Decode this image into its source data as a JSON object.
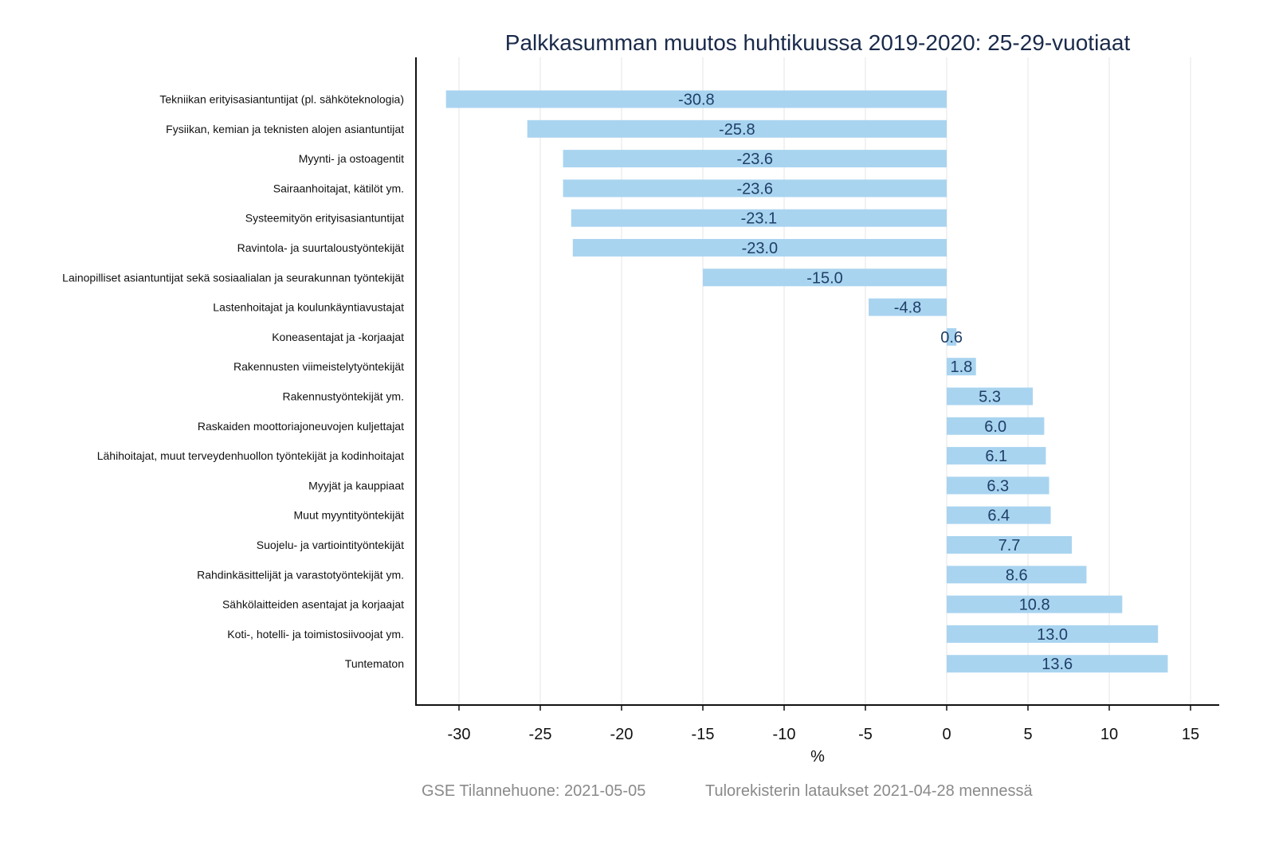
{
  "colors": {
    "bar": "#a9d4f0",
    "value_label": "#1f3f66",
    "title": "#1a2a4a",
    "footer": "#8a8a8a",
    "grid": "#e6e6e6"
  },
  "chart_data": {
    "type": "bar",
    "orientation": "horizontal",
    "title": "Palkkasumman muutos huhtikuussa 2019-2020: 25-29-vuotiaat",
    "xlabel": "%",
    "ylabel": "",
    "xlim": [
      -32.5,
      16.8
    ],
    "xticks": [
      -30,
      -25,
      -20,
      -15,
      -10,
      -5,
      0,
      5,
      10,
      15
    ],
    "grid": true,
    "categories": [
      "Tekniikan erityisasiantuntijat (pl. sähköteknologia)",
      "Fysiikan, kemian ja teknisten alojen asiantuntijat",
      "Myynti- ja ostoagentit",
      "Sairaanhoitajat, kätilöt ym.",
      "Systeemityön erityisasiantuntijat",
      "Ravintola- ja suurtaloustyöntekijät",
      "Lainopilliset asiantuntijat sekä sosiaalialan ja seurakunnan työntekijät",
      "Lastenhoitajat ja koulunkäyntiavustajat",
      "Koneasentajat ja -korjaajat",
      "Rakennusten viimeistelytyöntekijät",
      "Rakennustyöntekijät ym.",
      "Raskaiden moottoriajoneuvojen kuljettajat",
      "Lähihoitajat, muut terveydenhuollon työntekijät ja kodinhoitajat",
      "Myyjät ja kauppiaat",
      "Muut myyntityöntekijät",
      "Suojelu- ja vartiointityöntekijät",
      "Rahdinkäsittelijät ja varastotyöntekijät ym.",
      "Sähkölaitteiden asentajat ja korjaajat",
      "Koti-, hotelli- ja toimistosiivoojat ym.",
      "Tuntematon"
    ],
    "values": [
      -30.8,
      -25.8,
      -23.6,
      -23.6,
      -23.1,
      -23.0,
      -15.0,
      -4.8,
      0.6,
      1.8,
      5.3,
      6.0,
      6.1,
      6.3,
      6.4,
      7.7,
      8.6,
      10.8,
      13.0,
      13.6
    ],
    "value_labels": [
      "-30.8",
      "-25.8",
      "-23.6",
      "-23.6",
      "-23.1",
      "-23.0",
      "-15.0",
      "-4.8",
      "0.6",
      "1.8",
      "5.3",
      "6.0",
      "6.1",
      "6.3",
      "6.4",
      "7.7",
      "8.6",
      "10.8",
      "13.0",
      "13.6"
    ]
  },
  "footer": {
    "source": "GSE Tilannehuone: 2021-05-05",
    "note": "Tulorekisterin lataukset 2021-04-28 mennessä"
  }
}
